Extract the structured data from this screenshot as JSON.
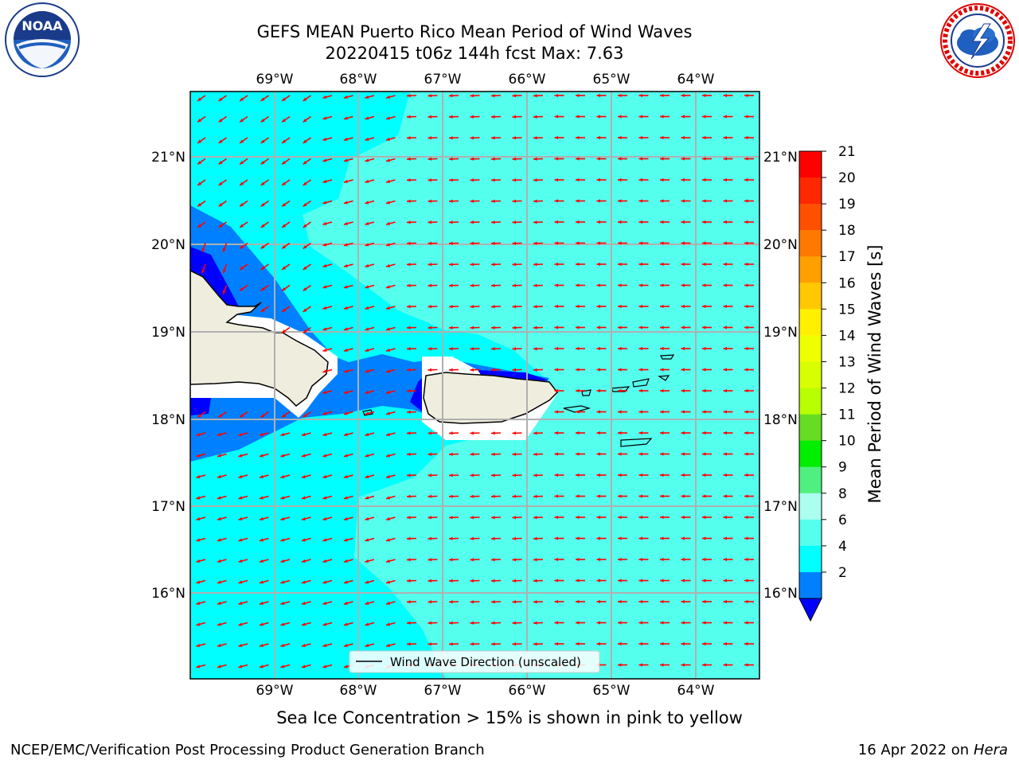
{
  "header": {
    "title_line1": "GEFS MEAN Puerto Rico Mean Period of Wind Waves",
    "title_line2": "20220415 t06z 144h fcst   Max: 7.63"
  },
  "logos": {
    "left": {
      "name": "noaa-logo",
      "text": "NOAA",
      "ring_text": "NATIONAL OCEANIC AND ATMOSPHERIC ADMINISTRATION · U.S. DEPARTMENT OF COMMERCE",
      "color": "#1a3b8a"
    },
    "right": {
      "name": "nws-logo",
      "ring_text": "NATIONAL WEATHER SERVICE",
      "color": "#e00000"
    }
  },
  "map": {
    "lon_labels": [
      "69°W",
      "68°W",
      "67°W",
      "66°W",
      "65°W",
      "64°W"
    ],
    "lat_labels": [
      "21°N",
      "20°N",
      "19°N",
      "18°N",
      "17°N",
      "16°N"
    ],
    "legend_label": "Wind Wave Direction (unscaled)",
    "vector_color": "#ff0000",
    "land_color": "#efedde"
  },
  "colorbar": {
    "label": "Mean Period of Wind Waves [s]",
    "ticks": [
      "21",
      "20",
      "19",
      "18",
      "17",
      "16",
      "15",
      "14",
      "13",
      "12",
      "11",
      "10",
      "9",
      "8",
      "6",
      "4",
      "2"
    ],
    "colors_top_to_bottom": [
      "#ff0000",
      "#ff2800",
      "#ff5000",
      "#ff7800",
      "#ffa000",
      "#ffc800",
      "#fff000",
      "#f0ff00",
      "#d8ff00",
      "#b8ff00",
      "#66dd22",
      "#00ee00",
      "#50f080",
      "#aaffee",
      "#55ffee",
      "#00ffff",
      "#0080ff"
    ],
    "under_color": "#0000ff"
  },
  "notes": {
    "sea_ice": "Sea Ice Concentration > 15% is shown in pink to yellow"
  },
  "footer": {
    "left": "NCEP/EMC/Verification Post Processing Product Generation Branch",
    "right_date": "16 Apr 2022 on ",
    "right_host": "Hera"
  }
}
